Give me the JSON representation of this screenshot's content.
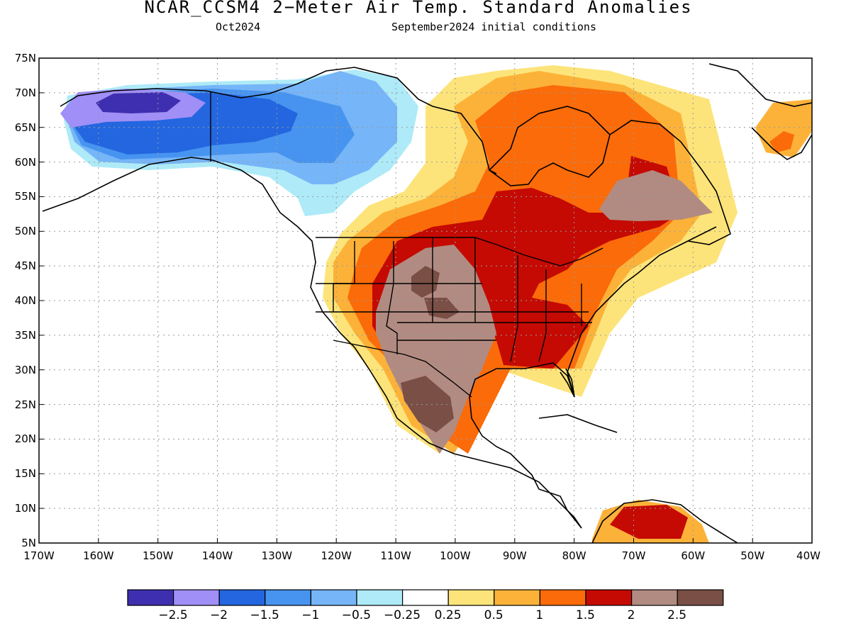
{
  "header": {
    "title": "NCAR_CCSM4 2−Meter Air Temp. Standard Anomalies",
    "valid_month": "Oct2024",
    "initial_conditions": "September2024 initial conditions"
  },
  "map": {
    "lat_labels": [
      "75N",
      "70N",
      "65N",
      "60N",
      "55N",
      "50N",
      "45N",
      "40N",
      "35N",
      "30N",
      "25N",
      "20N",
      "15N",
      "10N",
      "5N"
    ],
    "lon_labels": [
      "170W",
      "160W",
      "150W",
      "140W",
      "130W",
      "120W",
      "110W",
      "100W",
      "90W",
      "80W",
      "70W",
      "60W",
      "50W",
      "40W"
    ],
    "regions": [
      {
        "name": "alaska-cold-core",
        "level": "-2.5",
        "color": "#3e2fb0"
      },
      {
        "name": "alaska-cold",
        "level": "-2",
        "color": "#9f8ff6"
      },
      {
        "name": "northwest-canada-cold",
        "level": "-1.5",
        "color": "#2366e0"
      },
      {
        "name": "yukon-cold",
        "level": "-1",
        "color": "#4794f0"
      },
      {
        "name": "nunavut-cool",
        "level": "-0.5",
        "color": "#76b5f8"
      },
      {
        "name": "prairie-cool",
        "level": "-0.25",
        "color": "#aeeaf7"
      },
      {
        "name": "hudson-warm",
        "level": "0.25",
        "color": "#fde47a"
      },
      {
        "name": "great-lakes-warm",
        "level": "0.5",
        "color": "#fcb239"
      },
      {
        "name": "ontario-warm",
        "level": "1",
        "color": "#fb6b09"
      },
      {
        "name": "central-us-hot",
        "level": "1.5",
        "color": "#c40a03"
      },
      {
        "name": "southwest-extreme",
        "level": "2",
        "color": "#b18b81"
      },
      {
        "name": "rockies-extreme-core",
        "level": "2.5",
        "color": "#7a4f45"
      }
    ]
  },
  "colorbar": {
    "colors": [
      "#3e2fb0",
      "#9f8ff6",
      "#2366e0",
      "#4794f0",
      "#76b5f8",
      "#aeeaf7",
      "#ffffff",
      "#fde47a",
      "#fcb239",
      "#fb6b09",
      "#c40a03",
      "#b18b81",
      "#7a4f45"
    ],
    "labels": [
      "−2.5",
      "−2",
      "−1.5",
      "−1",
      "−0.5",
      "−0.25",
      "0.25",
      "0.5",
      "1",
      "1.5",
      "2",
      "2.5"
    ]
  }
}
